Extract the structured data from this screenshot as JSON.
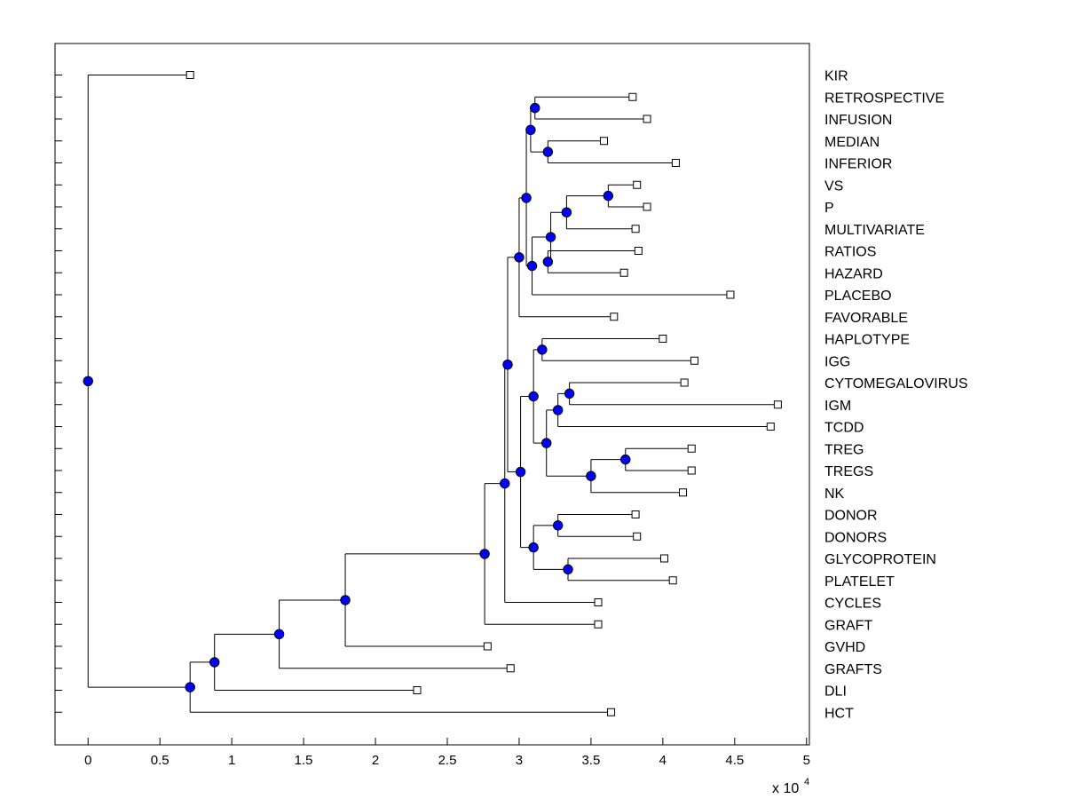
{
  "chart_data": {
    "type": "dendrogram",
    "x_exponent_label": "x 10",
    "x_exponent_power": "4",
    "x_multiplier": 10000,
    "xlim": [
      -0.23,
      5.02
    ],
    "x_ticks": [
      0,
      0.5,
      1,
      1.5,
      2,
      2.5,
      3,
      3.5,
      4,
      4.5,
      5
    ],
    "x_tick_labels": [
      "0",
      "0.5",
      "1",
      "1.5",
      "2",
      "2.5",
      "3",
      "3.5",
      "4",
      "4.5",
      "5"
    ],
    "grid": false,
    "colors": {
      "internal_node": "#0000ff",
      "leaf_marker": "#ffffff",
      "line": "#000000"
    },
    "leaves": [
      {
        "label": "KIR",
        "x": 0.71
      },
      {
        "label": "RETROSPECTIVE",
        "x": 3.79
      },
      {
        "label": "INFUSION",
        "x": 3.89
      },
      {
        "label": "MEDIAN",
        "x": 3.59
      },
      {
        "label": "INFERIOR",
        "x": 4.09
      },
      {
        "label": "VS",
        "x": 3.82
      },
      {
        "label": "P",
        "x": 3.89
      },
      {
        "label": "MULTIVARIATE",
        "x": 3.81
      },
      {
        "label": "RATIOS",
        "x": 3.83
      },
      {
        "label": "HAZARD",
        "x": 3.73
      },
      {
        "label": "PLACEBO",
        "x": 4.47
      },
      {
        "label": "FAVORABLE",
        "x": 3.66
      },
      {
        "label": "HAPLOTYPE",
        "x": 4.0
      },
      {
        "label": "IGG",
        "x": 4.22
      },
      {
        "label": "CYTOMEGALOVIRUS",
        "x": 4.15
      },
      {
        "label": "IGM",
        "x": 4.8
      },
      {
        "label": "TCDD",
        "x": 4.75
      },
      {
        "label": "TREG",
        "x": 4.2
      },
      {
        "label": "TREGS",
        "x": 4.2
      },
      {
        "label": "NK",
        "x": 4.14
      },
      {
        "label": "DONOR",
        "x": 3.81
      },
      {
        "label": "DONORS",
        "x": 3.82
      },
      {
        "label": "GLYCOPROTEIN",
        "x": 4.01
      },
      {
        "label": "PLATELET",
        "x": 4.07
      },
      {
        "label": "CYCLES",
        "x": 3.55
      },
      {
        "label": "GRAFT",
        "x": 3.55
      },
      {
        "label": "GVHD",
        "x": 2.78
      },
      {
        "label": "GRAFTS",
        "x": 2.94
      },
      {
        "label": "DLI",
        "x": 2.29
      },
      {
        "label": "HCT",
        "x": 3.64
      }
    ],
    "internal_nodes": [
      {
        "id": "n1",
        "x": 3.11,
        "children": [
          "RETROSPECTIVE",
          "INFUSION"
        ]
      },
      {
        "id": "n2",
        "x": 3.2,
        "children": [
          "MEDIAN",
          "INFERIOR"
        ]
      },
      {
        "id": "n3",
        "x": 3.08,
        "children": [
          "n1",
          "n2"
        ]
      },
      {
        "id": "n4",
        "x": 3.62,
        "children": [
          "VS",
          "P"
        ]
      },
      {
        "id": "n5",
        "x": 3.33,
        "children": [
          "n4",
          "MULTIVARIATE"
        ]
      },
      {
        "id": "n6",
        "x": 3.2,
        "children": [
          "RATIOS",
          "HAZARD"
        ]
      },
      {
        "id": "n7",
        "x": 3.22,
        "children": [
          "n5",
          "n6"
        ]
      },
      {
        "id": "n8",
        "x": 3.09,
        "children": [
          "n7",
          "PLACEBO"
        ]
      },
      {
        "id": "n9",
        "x": 3.05,
        "children": [
          "n3",
          "n8"
        ]
      },
      {
        "id": "n10",
        "x": 3.0,
        "children": [
          "n9",
          "FAVORABLE"
        ]
      },
      {
        "id": "n11",
        "x": 3.16,
        "children": [
          "HAPLOTYPE",
          "IGG"
        ]
      },
      {
        "id": "n12",
        "x": 3.35,
        "children": [
          "CYTOMEGALOVIRUS",
          "IGM"
        ]
      },
      {
        "id": "n13",
        "x": 3.27,
        "children": [
          "n12",
          "TCDD"
        ]
      },
      {
        "id": "n14",
        "x": 3.74,
        "children": [
          "TREG",
          "TREGS"
        ]
      },
      {
        "id": "n15",
        "x": 3.5,
        "children": [
          "n14",
          "NK"
        ]
      },
      {
        "id": "n16",
        "x": 3.19,
        "children": [
          "n13",
          "n15"
        ]
      },
      {
        "id": "n17",
        "x": 3.1,
        "children": [
          "n11",
          "n16"
        ]
      },
      {
        "id": "n18",
        "x": 3.27,
        "children": [
          "DONOR",
          "DONORS"
        ]
      },
      {
        "id": "n19",
        "x": 3.34,
        "children": [
          "GLYCOPROTEIN",
          "PLATELET"
        ]
      },
      {
        "id": "n20",
        "x": 3.1,
        "children": [
          "n18",
          "n19"
        ]
      },
      {
        "id": "n21",
        "x": 3.01,
        "children": [
          "n17",
          "n20"
        ]
      },
      {
        "id": "n22",
        "x": 2.92,
        "children": [
          "n10",
          "n21"
        ]
      },
      {
        "id": "n23",
        "x": 2.9,
        "children": [
          "n22",
          "CYCLES"
        ]
      },
      {
        "id": "n24",
        "x": 2.76,
        "children": [
          "n23",
          "GRAFT"
        ]
      },
      {
        "id": "n25",
        "x": 1.79,
        "children": [
          "n24",
          "GVHD"
        ]
      },
      {
        "id": "n26",
        "x": 1.33,
        "children": [
          "n25",
          "GRAFTS"
        ]
      },
      {
        "id": "n27",
        "x": 0.88,
        "children": [
          "n26",
          "DLI"
        ]
      },
      {
        "id": "n28",
        "x": 0.71,
        "children": [
          "n27",
          "HCT"
        ]
      },
      {
        "id": "root",
        "x": 0.0,
        "children": [
          "KIR",
          "n28"
        ]
      }
    ]
  }
}
